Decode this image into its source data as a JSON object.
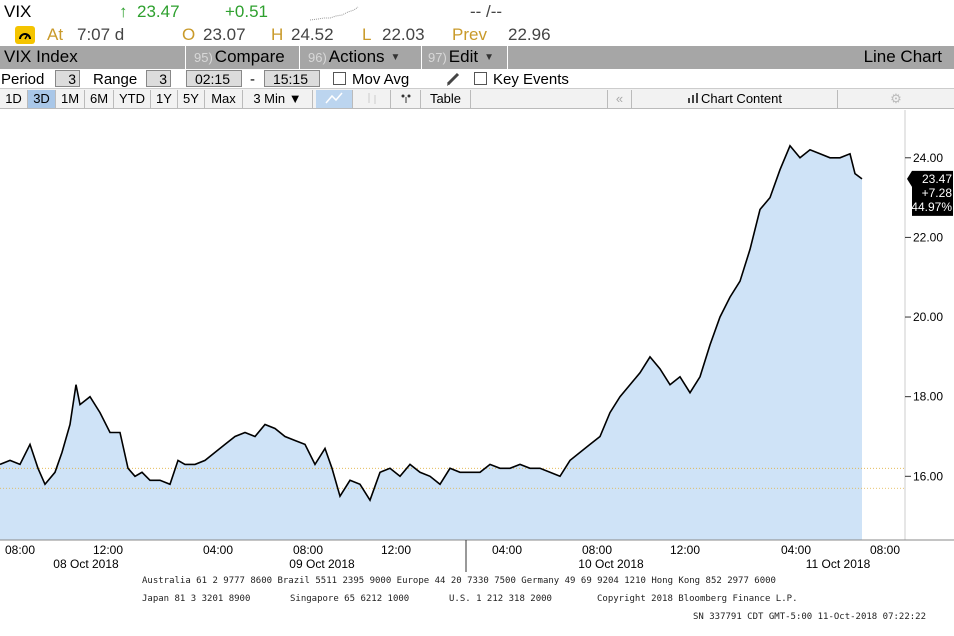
{
  "ticker": {
    "symbol": "VIX",
    "last": "23.47",
    "change": "+0.51",
    "bidask": "-- /--"
  },
  "quote": {
    "at_label": "At",
    "time": "7:07 d",
    "open_label": "O",
    "open": "23.07",
    "high_label": "H",
    "high": "24.52",
    "low_label": "L",
    "low": "22.03",
    "prev_label": "Prev",
    "prev": "22.96"
  },
  "titlebar": {
    "security": "VIX Index",
    "compare_num": "95)",
    "compare": "Compare",
    "actions_num": "96)",
    "actions": "Actions",
    "edit_num": "97)",
    "edit": "Edit",
    "view": "Line Chart"
  },
  "period": {
    "period_label": "Period",
    "period_value": "3",
    "range_label": "Range",
    "range_value": "3",
    "start_time": "02:15",
    "dash": "-",
    "end_time": "15:15",
    "mov_avg": "Mov Avg",
    "key_events": "Key Events"
  },
  "ranges": {
    "d1": "1D",
    "d3": "3D",
    "m1": "1M",
    "m6": "6M",
    "ytd": "YTD",
    "y1": "1Y",
    "y5": "5Y",
    "max": "Max",
    "interval": "3 Min",
    "table": "Table",
    "chart_content": "Chart Content",
    "active": "3D"
  },
  "colors": {
    "area_fill": "#cfe3f7",
    "line": "#000000",
    "green": "#2ea02e",
    "accent": "#a9c7e8",
    "ref_line": "#e0b040"
  },
  "chart_data": {
    "type": "area",
    "x_tick_labels": [
      "08:00",
      "12:00",
      "04:00",
      "08:00",
      "12:00",
      "04:00",
      "08:00",
      "12:00",
      "04:00",
      "08:00"
    ],
    "date_labels": [
      "08 Oct 2018",
      "09 Oct 2018",
      "10 Oct 2018",
      "11 Oct 2018"
    ],
    "y_ticks": [
      "24.00",
      "22.00",
      "20.00",
      "18.00",
      "16.00"
    ],
    "ylim": [
      14.4,
      25.2
    ],
    "ref_lines": [
      16.2,
      15.7
    ],
    "last_badge": [
      "23.47",
      "+7.28",
      "44.97%"
    ],
    "series": [
      {
        "x": [
          0,
          10,
          20,
          30,
          38,
          45,
          55,
          62,
          70,
          76,
          80,
          90,
          100,
          110,
          120,
          128,
          135,
          142,
          150,
          160,
          170,
          178,
          185,
          195,
          205,
          215,
          225,
          235,
          245,
          255,
          265,
          275,
          285,
          295,
          305,
          315,
          325,
          332,
          340,
          350,
          360,
          370,
          380,
          390,
          400,
          410,
          420,
          430,
          440,
          450,
          460,
          470,
          480,
          490,
          500,
          510,
          520,
          530,
          540,
          550,
          560,
          570,
          580,
          590,
          600,
          610,
          620,
          630,
          640,
          650,
          660,
          670,
          680,
          690,
          700,
          710,
          720,
          730,
          740,
          750,
          760,
          770,
          780,
          790,
          800,
          810,
          820,
          830,
          840,
          850,
          855,
          862
        ],
        "y": [
          16.3,
          16.4,
          16.3,
          16.8,
          16.2,
          15.8,
          16.1,
          16.6,
          17.3,
          18.3,
          17.8,
          18.0,
          17.6,
          17.1,
          17.1,
          16.2,
          16.0,
          16.1,
          15.9,
          15.9,
          15.8,
          16.4,
          16.3,
          16.3,
          16.4,
          16.6,
          16.8,
          17.0,
          17.1,
          17.0,
          17.3,
          17.2,
          17.0,
          16.9,
          16.8,
          16.3,
          16.7,
          16.2,
          15.5,
          15.9,
          15.8,
          15.4,
          16.1,
          16.2,
          16.0,
          16.3,
          16.1,
          16.0,
          15.8,
          16.2,
          16.1,
          16.1,
          16.1,
          16.3,
          16.2,
          16.2,
          16.3,
          16.2,
          16.2,
          16.1,
          16.0,
          16.4,
          16.6,
          16.8,
          17.0,
          17.6,
          18.0,
          18.3,
          18.6,
          19.0,
          18.7,
          18.3,
          18.5,
          18.1,
          18.5,
          19.3,
          20.0,
          20.5,
          20.9,
          21.7,
          22.7,
          23.0,
          23.7,
          24.3,
          24.0,
          24.2,
          24.1,
          24.0,
          24.0,
          24.1,
          23.6,
          23.47
        ]
      }
    ]
  },
  "footer": {
    "line1": "Australia 61 2 9777 8600 Brazil 5511 2395 9000 Europe 44 20 7330 7500 Germany 49 69 9204 1210 Hong Kong 852 2977 6000",
    "line2_left": "Japan 81 3 3201 8900",
    "line2_mid1": "Singapore 65 6212 1000",
    "line2_mid2": "U.S. 1 212 318 2000",
    "line2_right": "Copyright 2018 Bloomberg Finance L.P.",
    "line3": "SN 337791 CDT  GMT-5:00 11-Oct-2018 07:22:22"
  }
}
